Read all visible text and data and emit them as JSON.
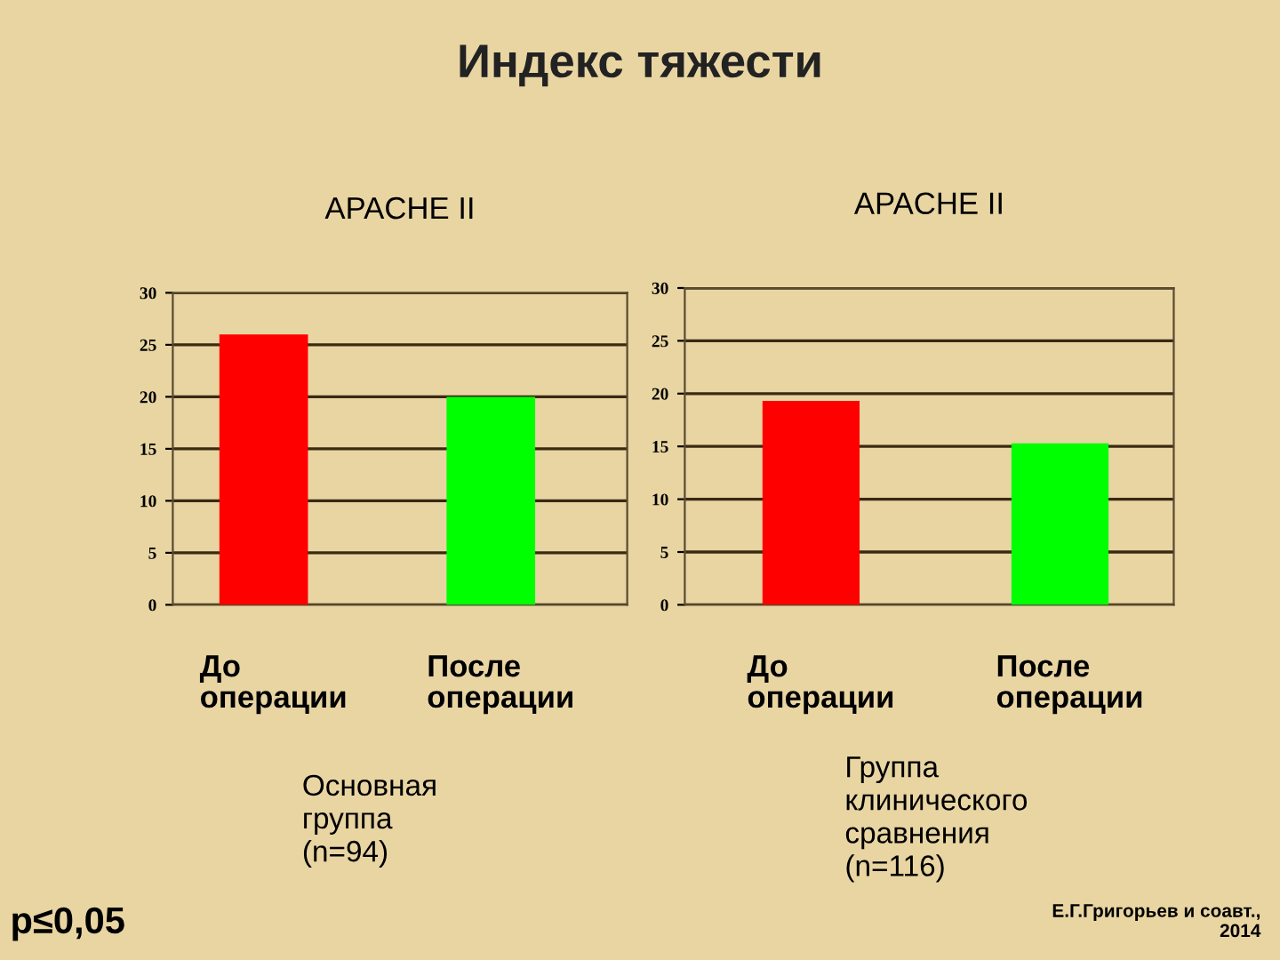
{
  "chart_data": [
    {
      "type": "bar",
      "title": "Индекс тяжести",
      "subtitle": "APACHE II",
      "categories": [
        "До\nоперации",
        "После\nоперации"
      ],
      "values": [
        26,
        20
      ],
      "colors": [
        "#ff0000",
        "#00ff00"
      ],
      "xlabel": "Основная\nгруппа\n(n=94)",
      "ylim": [
        0,
        30
      ],
      "yticks": [
        0,
        5,
        10,
        15,
        20,
        25,
        30
      ],
      "grid": "y",
      "annotations": [
        "p≤0,05"
      ]
    },
    {
      "type": "bar",
      "subtitle": "APACHE II",
      "categories": [
        "До\nоперации",
        "После\nоперации"
      ],
      "values": [
        19.3,
        15.3
      ],
      "colors": [
        "#ff0000",
        "#00ff00"
      ],
      "xlabel": "Группа\nклинического\nсравнения\n(n=116)",
      "ylim": [
        0,
        30
      ],
      "yticks": [
        0,
        5,
        10,
        15,
        20,
        25,
        30
      ],
      "grid": "y",
      "annotations": [
        "Е.Г.Григорьев и соавт.,\n2014"
      ]
    }
  ]
}
